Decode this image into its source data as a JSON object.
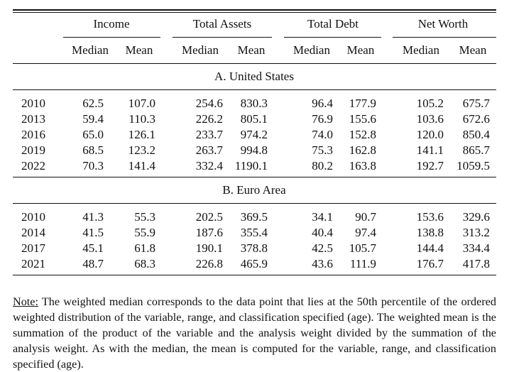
{
  "table": {
    "groups": [
      "Income",
      "Total Assets",
      "Total Debt",
      "Net Worth"
    ],
    "subheaders": [
      "Median",
      "Mean",
      "Median",
      "Mean",
      "Median",
      "Mean",
      "Median",
      "Mean"
    ],
    "panels": [
      {
        "title": "A. United States",
        "rows": [
          {
            "year": "2010",
            "values": [
              "62.5",
              "107.0",
              "254.6",
              "830.3",
              "96.4",
              "177.9",
              "105.2",
              "675.7"
            ]
          },
          {
            "year": "2013",
            "values": [
              "59.4",
              "110.3",
              "226.2",
              "805.1",
              "76.9",
              "155.6",
              "103.6",
              "672.6"
            ]
          },
          {
            "year": "2016",
            "values": [
              "65.0",
              "126.1",
              "233.7",
              "974.2",
              "74.0",
              "152.8",
              "120.0",
              "850.4"
            ]
          },
          {
            "year": "2019",
            "values": [
              "68.5",
              "123.2",
              "263.7",
              "994.8",
              "75.3",
              "162.8",
              "141.1",
              "865.7"
            ]
          },
          {
            "year": "2022",
            "values": [
              "70.3",
              "141.4",
              "332.4",
              "1190.1",
              "80.2",
              "163.8",
              "192.7",
              "1059.5"
            ]
          }
        ]
      },
      {
        "title": "B. Euro Area",
        "rows": [
          {
            "year": "2010",
            "values": [
              "41.3",
              "55.3",
              "202.5",
              "369.5",
              "34.1",
              "90.7",
              "153.6",
              "329.6"
            ]
          },
          {
            "year": "2014",
            "values": [
              "41.5",
              "55.9",
              "187.6",
              "355.4",
              "40.4",
              "97.4",
              "138.8",
              "313.2"
            ]
          },
          {
            "year": "2017",
            "values": [
              "45.1",
              "61.8",
              "190.1",
              "378.8",
              "42.5",
              "105.7",
              "144.4",
              "334.4"
            ]
          },
          {
            "year": "2021",
            "values": [
              "48.7",
              "68.3",
              "226.8",
              "465.9",
              "43.6",
              "111.9",
              "176.7",
              "417.8"
            ]
          }
        ]
      }
    ]
  },
  "note": {
    "label": "Note:",
    "text": " The weighted median corresponds to the data point that lies at the 50th percentile of the ordered weighted distribution of the variable, range, and classification specified (age).  The weighted mean is the summation of the product of the variable and the analysis weight divided by the summation of the analysis weight. As with the median, the mean is computed for the variable, range, and classification specified (age)."
  }
}
